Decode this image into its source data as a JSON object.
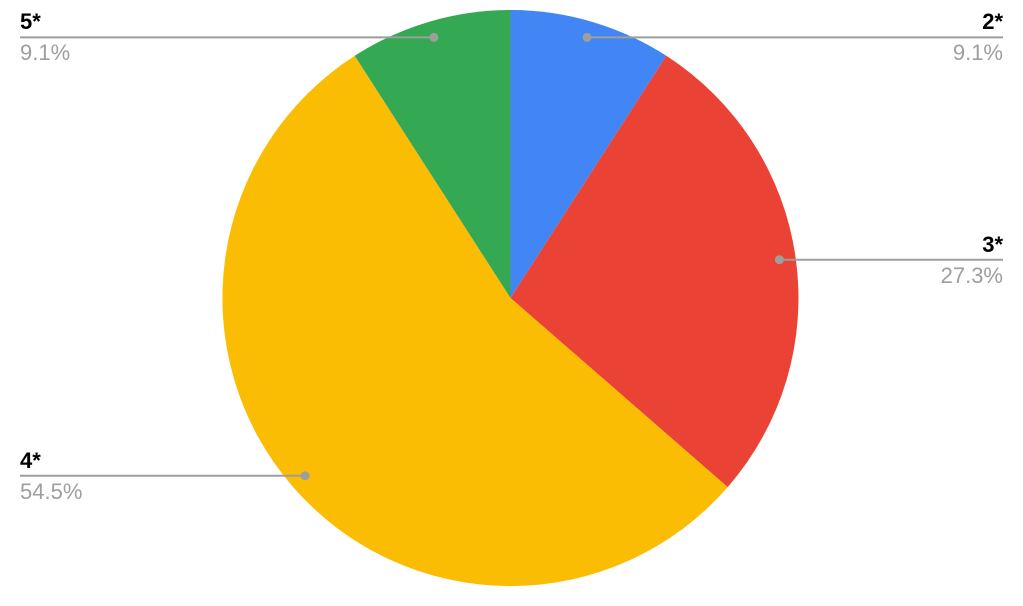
{
  "chart_data": {
    "type": "pie",
    "categories": [
      "2*",
      "3*",
      "4*",
      "5*"
    ],
    "values": [
      9.1,
      27.3,
      54.5,
      9.1
    ],
    "percent_labels": [
      "9.1%",
      "27.3%",
      "54.5%",
      "9.1%"
    ],
    "colors": [
      "#4285f4",
      "#ea4335",
      "#fbbc04",
      "#34a853"
    ],
    "start_angle_deg": 0,
    "direction": "clockwise",
    "legend": "labeled",
    "background": "#ffffff",
    "label_style": {
      "category_color": "#000000",
      "percent_color": "#9e9e9e",
      "leader_line_color": "#9e9e9e"
    }
  }
}
